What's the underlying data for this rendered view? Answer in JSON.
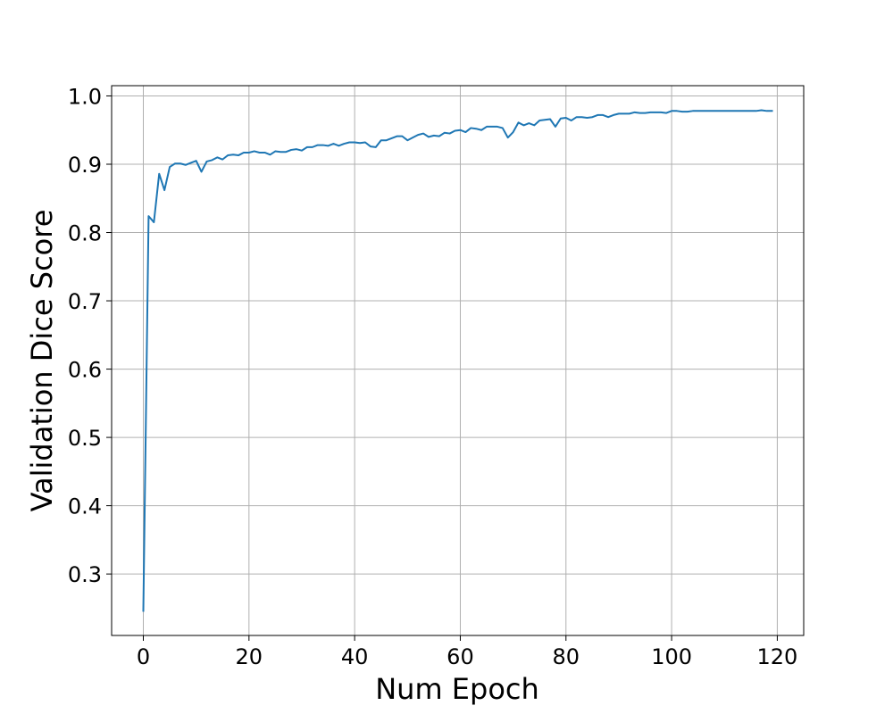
{
  "chart_data": {
    "type": "line",
    "xlabel": "Num Epoch",
    "ylabel": "Validation Dice Score",
    "xlim": [
      -6,
      125
    ],
    "ylim": [
      0.21,
      1.015
    ],
    "grid": true,
    "xticks": [
      0,
      20,
      40,
      60,
      80,
      100,
      120
    ],
    "yticks": [
      0.3,
      0.4,
      0.5,
      0.6,
      0.7,
      0.8,
      0.9,
      1.0
    ],
    "xtick_labels": [
      "0",
      "20",
      "40",
      "60",
      "80",
      "100",
      "120"
    ],
    "ytick_labels": [
      "0.3",
      "0.4",
      "0.5",
      "0.6",
      "0.7",
      "0.8",
      "0.9",
      "1.0"
    ],
    "series": [
      {
        "color": "#1f77b4",
        "x": [
          0,
          1,
          2,
          3,
          4,
          5,
          6,
          7,
          8,
          9,
          10,
          11,
          12,
          13,
          14,
          15,
          16,
          17,
          18,
          19,
          20,
          21,
          22,
          23,
          24,
          25,
          26,
          27,
          28,
          29,
          30,
          31,
          32,
          33,
          34,
          35,
          36,
          37,
          38,
          39,
          40,
          41,
          42,
          43,
          44,
          45,
          46,
          47,
          48,
          49,
          50,
          51,
          52,
          53,
          54,
          55,
          56,
          57,
          58,
          59,
          60,
          61,
          62,
          63,
          64,
          65,
          66,
          67,
          68,
          69,
          70,
          71,
          72,
          73,
          74,
          75,
          76,
          77,
          78,
          79,
          80,
          81,
          82,
          83,
          84,
          85,
          86,
          87,
          88,
          89,
          90,
          91,
          92,
          93,
          94,
          95,
          96,
          97,
          98,
          99,
          100,
          101,
          102,
          103,
          104,
          105,
          106,
          107,
          108,
          109,
          110,
          111,
          112,
          113,
          114,
          115,
          116,
          117,
          118,
          119
        ],
        "y": [
          0.246,
          0.824,
          0.815,
          0.886,
          0.862,
          0.896,
          0.901,
          0.901,
          0.899,
          0.902,
          0.905,
          0.889,
          0.904,
          0.906,
          0.91,
          0.907,
          0.913,
          0.914,
          0.913,
          0.917,
          0.917,
          0.919,
          0.917,
          0.917,
          0.914,
          0.919,
          0.918,
          0.918,
          0.921,
          0.922,
          0.92,
          0.925,
          0.925,
          0.928,
          0.928,
          0.927,
          0.93,
          0.927,
          0.93,
          0.932,
          0.932,
          0.931,
          0.932,
          0.926,
          0.925,
          0.935,
          0.935,
          0.938,
          0.941,
          0.941,
          0.935,
          0.939,
          0.943,
          0.945,
          0.94,
          0.942,
          0.941,
          0.946,
          0.945,
          0.949,
          0.95,
          0.947,
          0.953,
          0.952,
          0.95,
          0.955,
          0.955,
          0.955,
          0.953,
          0.939,
          0.947,
          0.961,
          0.957,
          0.96,
          0.957,
          0.964,
          0.965,
          0.966,
          0.955,
          0.967,
          0.968,
          0.964,
          0.969,
          0.969,
          0.968,
          0.969,
          0.972,
          0.972,
          0.969,
          0.972,
          0.974,
          0.974,
          0.974,
          0.976,
          0.975,
          0.975,
          0.976,
          0.976,
          0.976,
          0.975,
          0.978,
          0.978,
          0.977,
          0.977,
          0.978,
          0.978,
          0.978,
          0.978,
          0.978,
          0.978,
          0.978,
          0.978,
          0.978,
          0.978,
          0.978,
          0.978,
          0.978,
          0.979,
          0.978,
          0.978
        ]
      }
    ]
  }
}
